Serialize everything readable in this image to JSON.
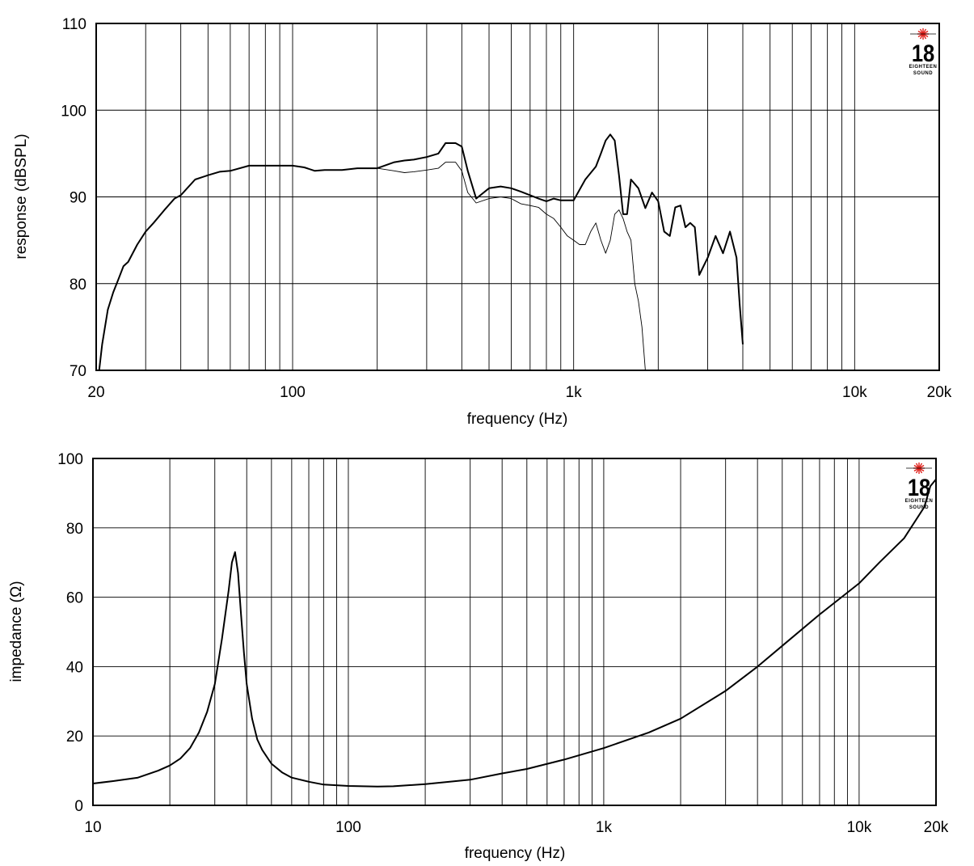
{
  "colors": {
    "line": "#000000",
    "logo_star": "#e0201b",
    "background": "#ffffff"
  },
  "logo": {
    "number": "18",
    "line1": "EIGHTEEN",
    "line2": "SOUND"
  },
  "chart_data": [
    {
      "type": "line",
      "ylabel": "response (dBSPL)",
      "xlabel": "frequency (Hz)",
      "x_scale": "log",
      "xlim": [
        20,
        20000
      ],
      "ylim": [
        70,
        110
      ],
      "x_ticks": [
        {
          "value": 20,
          "label": "20"
        },
        {
          "value": 100,
          "label": "100"
        },
        {
          "value": 1000,
          "label": "1k"
        },
        {
          "value": 10000,
          "label": "10k"
        },
        {
          "value": 20000,
          "label": "20k"
        }
      ],
      "y_ticks": [
        {
          "value": 70,
          "label": "70"
        },
        {
          "value": 80,
          "label": "80"
        },
        {
          "value": 90,
          "label": "90"
        },
        {
          "value": 100,
          "label": "100"
        },
        {
          "value": 110,
          "label": "110"
        }
      ],
      "grid": true,
      "series": [
        {
          "style": "thick",
          "x": [
            20.5,
            21,
            22,
            23,
            24,
            25,
            26,
            28,
            30,
            32,
            35,
            38,
            40,
            45,
            50,
            55,
            60,
            70,
            80,
            90,
            100,
            110,
            120,
            130,
            150,
            170,
            200,
            230,
            250,
            270,
            300,
            330,
            350,
            380,
            400,
            420,
            450,
            500,
            550,
            600,
            650,
            700,
            750,
            800,
            850,
            900,
            950,
            1000,
            1100,
            1200,
            1250,
            1300,
            1350,
            1400,
            1450,
            1500,
            1550,
            1600,
            1700,
            1800,
            1900,
            2000,
            2100,
            2200,
            2300,
            2400,
            2500,
            2600,
            2700,
            2800,
            3000,
            3200,
            3400,
            3600,
            3800,
            3900,
            4000
          ],
          "values": [
            70,
            73,
            77,
            79,
            80.5,
            82,
            82.5,
            84.5,
            86,
            87,
            88.5,
            89.8,
            90.2,
            92,
            92.5,
            92.9,
            93,
            93.6,
            93.6,
            93.6,
            93.6,
            93.4,
            93,
            93.1,
            93.1,
            93.3,
            93.3,
            94,
            94.2,
            94.3,
            94.6,
            95,
            96.2,
            96.2,
            95.8,
            93,
            89.8,
            91,
            91.2,
            91,
            90.6,
            90.2,
            89.8,
            89.5,
            89.8,
            89.6,
            89.6,
            89.6,
            92,
            93.5,
            95,
            96.5,
            97.2,
            96.5,
            92.5,
            88,
            88,
            92,
            91,
            88.7,
            90.5,
            89.5,
            86,
            85.5,
            88.8,
            89,
            86.5,
            87,
            86.5,
            81,
            83,
            85.5,
            83.5,
            86,
            83,
            77.5,
            73
          ]
        },
        {
          "style": "thin",
          "x": [
            200,
            230,
            250,
            270,
            300,
            330,
            350,
            380,
            400,
            420,
            450,
            500,
            550,
            600,
            650,
            700,
            750,
            800,
            850,
            900,
            950,
            1000,
            1050,
            1100,
            1150,
            1200,
            1250,
            1300,
            1350,
            1400,
            1450,
            1500,
            1550,
            1600,
            1650,
            1700,
            1750,
            1800
          ],
          "values": [
            93.3,
            93.0,
            92.8,
            92.9,
            93.1,
            93.3,
            94.0,
            94.0,
            93.0,
            90.5,
            89.3,
            89.8,
            90.0,
            89.8,
            89.2,
            89.0,
            88.8,
            88.0,
            87.5,
            86.5,
            85.5,
            85.0,
            84.5,
            84.5,
            86.0,
            87.0,
            85.0,
            83.5,
            85.0,
            88.0,
            88.5,
            87.5,
            86.0,
            85.0,
            80.0,
            78.0,
            75.0,
            70.0
          ]
        }
      ]
    },
    {
      "type": "line",
      "ylabel": "impedance (Ω)",
      "xlabel": "frequency (Hz)",
      "x_scale": "log",
      "xlim": [
        10,
        20000
      ],
      "ylim": [
        0,
        100
      ],
      "x_ticks": [
        {
          "value": 10,
          "label": "10"
        },
        {
          "value": 100,
          "label": "100"
        },
        {
          "value": 1000,
          "label": "1k"
        },
        {
          "value": 10000,
          "label": "10k"
        },
        {
          "value": 20000,
          "label": "20k"
        }
      ],
      "y_ticks": [
        {
          "value": 0,
          "label": "0"
        },
        {
          "value": 20,
          "label": "20"
        },
        {
          "value": 40,
          "label": "40"
        },
        {
          "value": 60,
          "label": "60"
        },
        {
          "value": 80,
          "label": "80"
        },
        {
          "value": 100,
          "label": "100"
        }
      ],
      "grid": true,
      "series": [
        {
          "style": "thick",
          "x": [
            10,
            12,
            15,
            18,
            20,
            22,
            24,
            26,
            28,
            30,
            32,
            34,
            35,
            36,
            37,
            38,
            39,
            40,
            42,
            44,
            46,
            50,
            55,
            60,
            70,
            80,
            100,
            130,
            150,
            200,
            300,
            400,
            500,
            700,
            1000,
            1500,
            2000,
            3000,
            4000,
            5000,
            7000,
            10000,
            12000,
            15000,
            18000,
            19000,
            20000
          ],
          "values": [
            6.3,
            7,
            8,
            10,
            11.5,
            13.5,
            16.5,
            21,
            27,
            35,
            48,
            62,
            70,
            73,
            67,
            55,
            44,
            35,
            25,
            19,
            16,
            12,
            9.5,
            8,
            6.8,
            6,
            5.6,
            5.4,
            5.5,
            6.1,
            7.4,
            9.2,
            10.5,
            13.2,
            16.5,
            21,
            25,
            33,
            40,
            46,
            55,
            64,
            70,
            77,
            86,
            92,
            94
          ]
        }
      ]
    }
  ]
}
